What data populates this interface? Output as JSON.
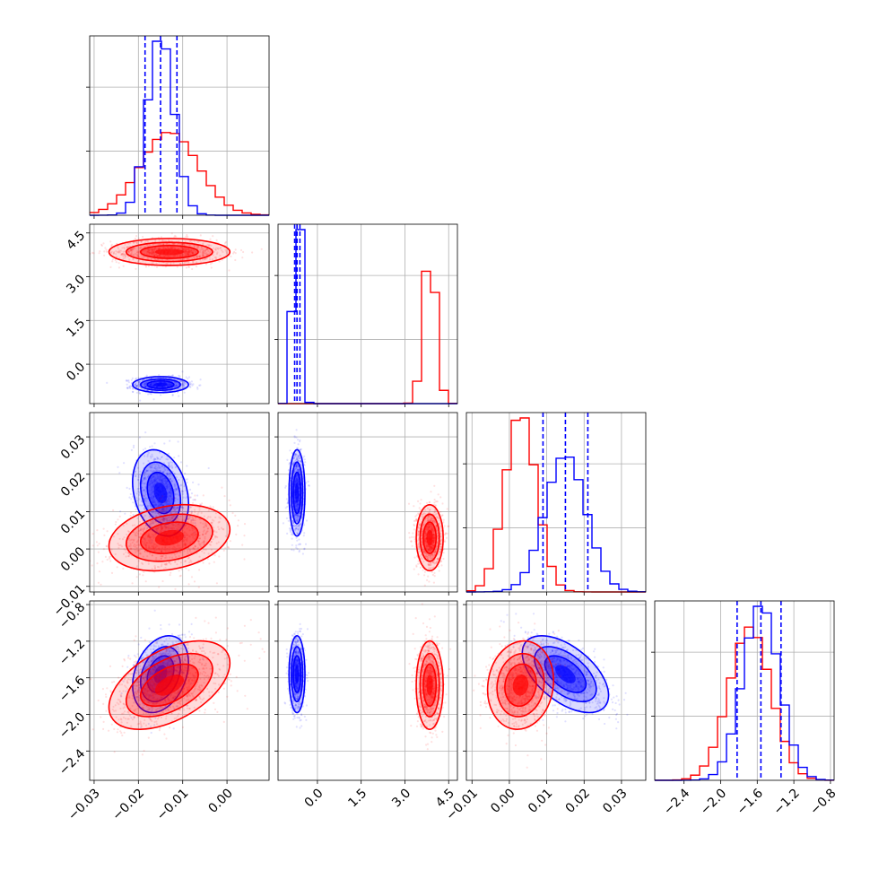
{
  "chart_data": {
    "type": "corner",
    "title": "",
    "parameters": [
      {
        "name": "",
        "range": [
          -0.031,
          0.0095
        ],
        "ticks": [
          -0.03,
          -0.02,
          -0.01,
          0.0
        ],
        "tick_labels": [
          "−0.03",
          "−0.02",
          "−0.01",
          "0.00"
        ]
      },
      {
        "name": "",
        "range": [
          -1.35,
          4.8
        ],
        "ticks": [
          0.0,
          1.5,
          3.0,
          4.5
        ],
        "tick_labels": [
          "0.0",
          "1.5",
          "3.0",
          "4.5"
        ]
      },
      {
        "name": "",
        "range": [
          -0.0115,
          0.0365
        ],
        "ticks": [
          -0.01,
          0.0,
          0.01,
          0.02,
          0.03
        ],
        "tick_labels": [
          "−0.01",
          "0.00",
          "0.01",
          "0.02",
          "0.03"
        ]
      },
      {
        "name": "",
        "range": [
          -2.72,
          -0.76
        ],
        "ticks": [
          -2.4,
          -2.0,
          -1.6,
          -1.2,
          -0.8
        ],
        "tick_labels": [
          "−2.4",
          "−2.0",
          "−1.6",
          "−1.2",
          "−0.8"
        ]
      }
    ],
    "series": [
      {
        "name": "",
        "color": "#0000ff",
        "means": [
          -0.015,
          -0.7,
          0.015,
          -1.56
        ],
        "sigmas": [
          0.003,
          0.13,
          0.0055,
          0.2
        ],
        "correlations": [
          [
            0,
            1,
            0.0
          ],
          [
            0,
            2,
            -0.25
          ],
          [
            0,
            3,
            0.3
          ],
          [
            1,
            2,
            0.0
          ],
          [
            1,
            3,
            0.0
          ],
          [
            2,
            3,
            -0.55
          ]
        ],
        "quantile_lines": [
          [
            -0.0185,
            -0.015,
            -0.0113
          ],
          [
            -0.78,
            -0.7,
            -0.6
          ],
          [
            0.009,
            0.015,
            0.021
          ],
          [
            -1.82,
            -1.56,
            -1.34
          ]
        ]
      },
      {
        "name": "",
        "color": "#ff0000",
        "means": [
          -0.013,
          3.85,
          0.003,
          -1.68
        ],
        "sigmas": [
          0.0065,
          0.22,
          0.0042,
          0.23
        ],
        "correlations": [
          [
            0,
            1,
            0.0
          ],
          [
            0,
            2,
            0.25
          ],
          [
            0,
            3,
            0.5
          ],
          [
            1,
            2,
            0.0
          ],
          [
            1,
            3,
            0.0
          ],
          [
            2,
            3,
            0.1
          ]
        ],
        "quantile_lines": []
      }
    ],
    "grid": true,
    "legend": "none"
  }
}
